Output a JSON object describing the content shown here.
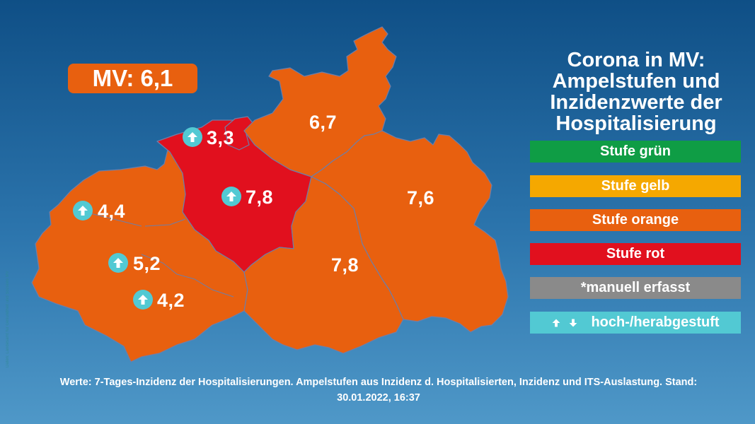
{
  "title": {
    "line1": "Corona in MV:",
    "line2": "Ampelstufen und",
    "line3": "Inzidenzwerte der",
    "line4": "Hospitalisierung"
  },
  "mv_total": "MV: 6,1",
  "districts": {
    "nordwestmecklenburg": {
      "value": "4,4",
      "level": "orange",
      "trend": "up"
    },
    "schwerin": {
      "value": "5,2",
      "level": "orange",
      "trend": "up"
    },
    "ludwigslust_parchim": {
      "value": "4,2",
      "level": "orange",
      "trend": "up"
    },
    "rostock_stadt": {
      "value": "3,3",
      "level": "red",
      "trend": "up"
    },
    "landkreis_rostock": {
      "value": "7,8",
      "level": "red",
      "trend": "up"
    },
    "vorpommern_ruegen": {
      "value": "6,7",
      "level": "orange",
      "trend": "none"
    },
    "vorpommern_greifswald": {
      "value": "7,6",
      "level": "orange",
      "trend": "none"
    },
    "mecklenburgische_seenplatte": {
      "value": "7,8",
      "level": "orange",
      "trend": "none"
    }
  },
  "legend": {
    "green": "Stufe grün",
    "yellow": "Stufe gelb",
    "orange": "Stufe orange",
    "red": "Stufe rot",
    "manual": "*manuell erfasst",
    "trend": "hoch-/herabgestuft"
  },
  "colors": {
    "green": "#0f9d45",
    "yellow": "#f5a800",
    "orange": "#e8600f",
    "red": "#e1101e",
    "manual": "#8a8a8a",
    "trend": "#52c9d3"
  },
  "footnote": {
    "line1": "Werte: 7-Tages-Inzidenz der Hospitalisierungen. Ampelstufen aus Inzidenz d. Hospitalisierten, Inzidenz und ITS-Auslastung. Stand:",
    "line2": "30.01.2022, 16:37"
  },
  "credit": "Daten: Landesamt für Gesundheit und Soziales MV"
}
